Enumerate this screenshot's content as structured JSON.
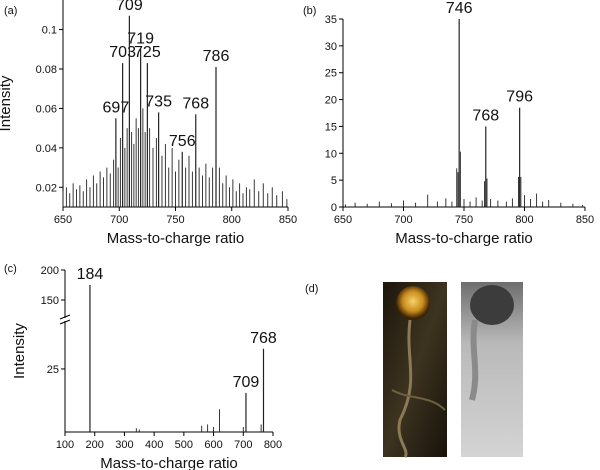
{
  "chart_data": [
    {
      "type": "stem",
      "panel_label": "(a)",
      "x_label": "Mass-to-charge ratio",
      "y_label": "Intensity",
      "xlim": [
        650,
        850
      ],
      "xticks": [
        650,
        700,
        750,
        800,
        850
      ],
      "ylim": [
        0.01,
        0.115
      ],
      "yticks": [
        0.02,
        0.04,
        0.06,
        0.08,
        0.1
      ],
      "color": "#222222",
      "peaks": {
        "x": [
          697,
          703,
          709,
          719,
          725,
          735,
          756,
          768,
          786
        ],
        "values": [
          0.055,
          0.083,
          0.107,
          0.09,
          0.083,
          0.058,
          0.038,
          0.057,
          0.081
        ]
      },
      "background": {
        "x": [
          650,
          653,
          656,
          659,
          662,
          665,
          668,
          671,
          674,
          677,
          680,
          683,
          686,
          689,
          692,
          695,
          699,
          701,
          705,
          707,
          711,
          713,
          715,
          717,
          721,
          723,
          727,
          730,
          733,
          738,
          741,
          744,
          747,
          750,
          753,
          759,
          762,
          765,
          771,
          774,
          777,
          780,
          783,
          789,
          792,
          795,
          798,
          801,
          804,
          807,
          810,
          813,
          816,
          820,
          824,
          828,
          832,
          836,
          840,
          845,
          849
        ],
        "values": [
          0.018,
          0.02,
          0.017,
          0.022,
          0.019,
          0.021,
          0.018,
          0.024,
          0.02,
          0.026,
          0.022,
          0.028,
          0.025,
          0.03,
          0.027,
          0.034,
          0.03,
          0.045,
          0.04,
          0.05,
          0.048,
          0.042,
          0.055,
          0.05,
          0.06,
          0.048,
          0.05,
          0.04,
          0.045,
          0.036,
          0.042,
          0.03,
          0.04,
          0.028,
          0.034,
          0.03,
          0.036,
          0.028,
          0.03,
          0.026,
          0.032,
          0.025,
          0.03,
          0.03,
          0.022,
          0.026,
          0.02,
          0.024,
          0.018,
          0.022,
          0.017,
          0.02,
          0.019,
          0.024,
          0.018,
          0.022,
          0.017,
          0.02,
          0.016,
          0.018,
          0.014
        ]
      }
    },
    {
      "type": "stem",
      "panel_label": "(b)",
      "x_label": "Mass-to-charge ratio",
      "xlim": [
        650,
        850
      ],
      "xticks": [
        650,
        700,
        750,
        800,
        850
      ],
      "ylim": [
        0,
        35
      ],
      "yticks": [
        0,
        5,
        10,
        15,
        20,
        25,
        30,
        35
      ],
      "color": "#222222",
      "peaks": {
        "x": [
          746,
          768,
          796
        ],
        "values": [
          35,
          15,
          18.5
        ]
      },
      "background": {
        "x": [
          652,
          660,
          670,
          680,
          690,
          700,
          710,
          720,
          728,
          735,
          740,
          744,
          745,
          747,
          750,
          755,
          760,
          765,
          767,
          769,
          772,
          778,
          785,
          790,
          795,
          797,
          800,
          805,
          810,
          815,
          820,
          830,
          840,
          848
        ],
        "values": [
          0.5,
          0.8,
          0.6,
          1.0,
          0.7,
          1.2,
          0.8,
          2.3,
          1.0,
          1.6,
          1.0,
          7.2,
          6.5,
          10.3,
          1.5,
          1.0,
          1.8,
          1.2,
          4.8,
          5.3,
          1.5,
          1.2,
          1.0,
          1.6,
          5.6,
          5.6,
          2.2,
          1.5,
          2.5,
          1.0,
          1.3,
          0.8,
          0.6,
          0.4
        ]
      }
    },
    {
      "type": "stem",
      "panel_label": "(c)",
      "x_label": "Mass-to-charge ratio",
      "y_label": "Intensity",
      "xlim": [
        100,
        800
      ],
      "xticks": [
        100,
        200,
        300,
        400,
        500,
        600,
        700,
        800
      ],
      "ylim": [
        0,
        200
      ],
      "yticks": [
        25,
        150,
        200
      ],
      "axis_break": [
        44,
        120
      ],
      "color": "#222222",
      "peaks": {
        "x": [
          184,
          709,
          768
        ],
        "values": [
          175,
          15.5,
          33
        ]
      },
      "background": {
        "x": [
          340,
          350,
          560,
          580,
          600,
          620,
          700,
          760
        ],
        "values": [
          1.5,
          1,
          2.5,
          3,
          2,
          9,
          2,
          3
        ]
      }
    }
  ],
  "image_panel": {
    "panel_label": "(d)"
  }
}
